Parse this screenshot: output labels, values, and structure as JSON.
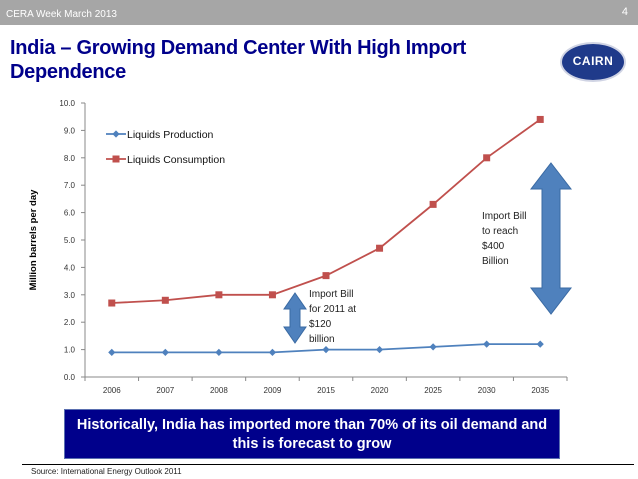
{
  "header": {
    "event": "CERA Week March 2013",
    "page_number": "4",
    "title": "India – Growing Demand Center With High Import Dependence",
    "logo_text": "CAIRN"
  },
  "callout": "Historically, India has imported more than 70% of its oil demand and this is forecast to grow",
  "source": "Source: International Energy Outlook 2011",
  "chart_data": {
    "type": "line",
    "title": "",
    "xlabel": "",
    "ylabel": "Million barrels per day",
    "categories": [
      "2006",
      "2007",
      "2008",
      "2009",
      "2015",
      "2020",
      "2025",
      "2030",
      "2035"
    ],
    "ylim": [
      0,
      10
    ],
    "yticks": [
      "0.0",
      "1.0",
      "2.0",
      "3.0",
      "4.0",
      "5.0",
      "6.0",
      "7.0",
      "8.0",
      "9.0",
      "10.0"
    ],
    "grid": false,
    "legend_position": "top-left",
    "series": [
      {
        "name": "Liquids Production",
        "color": "#4f81bd",
        "marker": "diamond",
        "values": [
          0.9,
          0.9,
          0.9,
          0.9,
          1.0,
          1.0,
          1.1,
          1.2,
          1.2
        ]
      },
      {
        "name": "Liquids Consumption",
        "color": "#c0504d",
        "marker": "square",
        "values": [
          2.7,
          2.8,
          3.0,
          3.0,
          3.7,
          4.7,
          6.3,
          8.0,
          9.4
        ]
      }
    ],
    "annotations": [
      {
        "text": [
          "Import Bill",
          "for 2011 at",
          "$120",
          "billion"
        ],
        "arrow_color": "#4f81bd",
        "between_category": "2009"
      },
      {
        "text": [
          "Import Bill",
          "to reach",
          "$400",
          "Billion"
        ],
        "arrow_color": "#4f81bd",
        "between_category": "2035"
      }
    ]
  }
}
